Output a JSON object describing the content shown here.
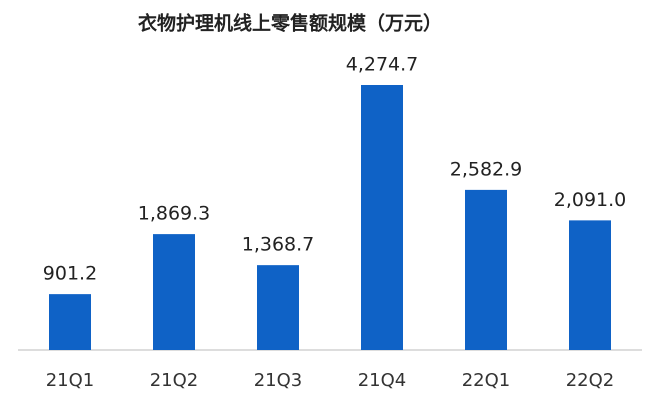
{
  "chart_data": {
    "type": "bar",
    "title": "衣物护理机线上零售额规模（万元）",
    "categories": [
      "21Q1",
      "21Q2",
      "21Q3",
      "21Q4",
      "22Q1",
      "22Q2"
    ],
    "values": [
      901.2,
      1869.3,
      1368.7,
      4274.7,
      2582.9,
      2091.0
    ],
    "value_labels": [
      "901.2",
      "1,869.3",
      "1,368.7",
      "4,274.7",
      "2,582.9",
      "2,091.0"
    ],
    "color": "#0f62c6"
  }
}
